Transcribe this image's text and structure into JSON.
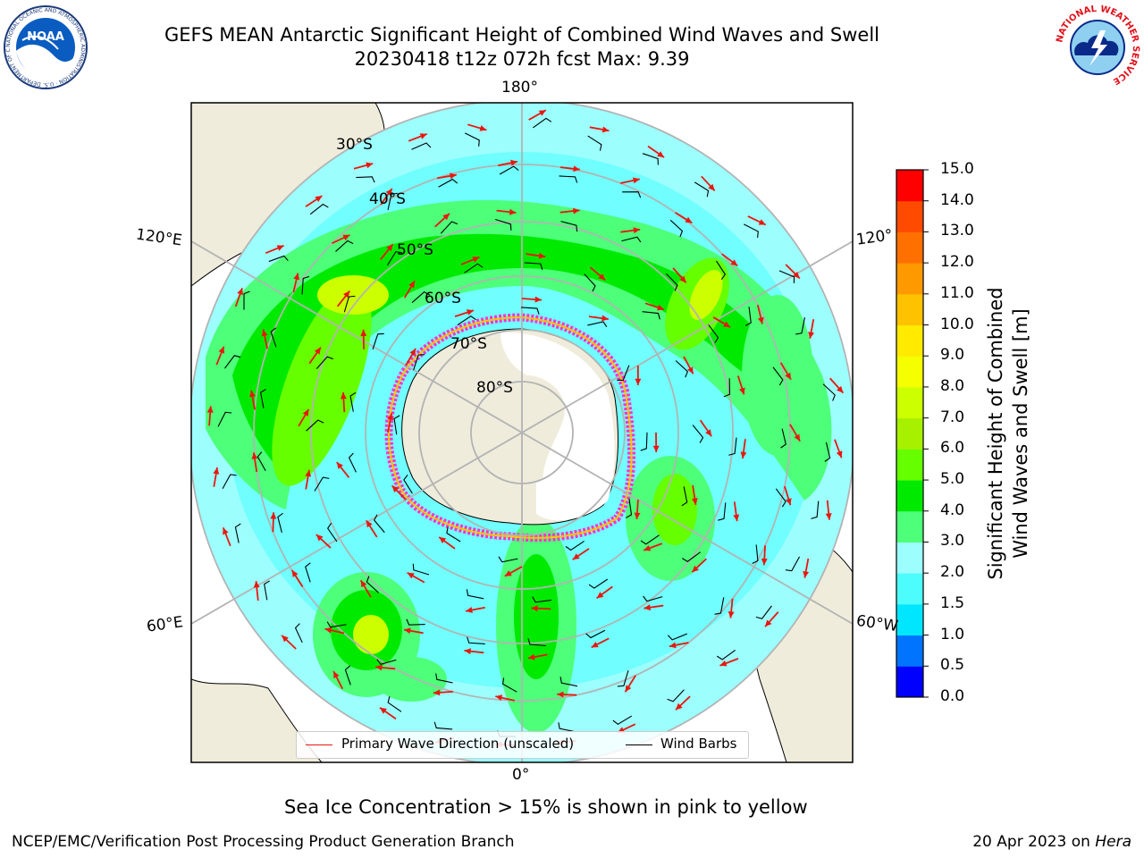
{
  "header": {
    "title_line1": "GEFS MEAN Antarctic Significant Height of Combined Wind Waves and Swell",
    "title_line2": "20230418 t12z 072h fcst   Max: 9.39"
  },
  "logos": {
    "noaa_text": "NOAA",
    "noaa_ring_text": "NATIONAL OCEANIC AND ATMOSPHERIC ADMINISTRATION · U.S. DEPARTMENT OF COMMERCE",
    "nws_ring_text": "NATIONAL WEATHER SERVICE"
  },
  "map": {
    "projection": "south-polar-stereographic",
    "longitude_labels": {
      "top": "180°",
      "bottom": "0°",
      "left_upper": "120°E",
      "left_lower": "60°E",
      "right_upper": "120°",
      "right_lower": "60°W"
    },
    "latitude_labels": [
      "30°S",
      "40°S",
      "50°S",
      "60°S",
      "70°S",
      "80°S"
    ],
    "colors": {
      "land": "#efecdc",
      "ice_sheet": "#ffffff",
      "gridline": "#b3b3b3",
      "wave_arrow": "#e8170f",
      "wind_barb": "#000000",
      "sea_ice": "#ff33cc"
    }
  },
  "legend": {
    "wave_direction": "Primary Wave Direction (unscaled)",
    "wind_barbs": "Wind Barbs"
  },
  "colorbar": {
    "label_line1": "Significant Height of Combined",
    "label_line2": "Wind Waves and Swell [m]",
    "ticks": [
      "15.0",
      "14.0",
      "13.0",
      "12.0",
      "11.0",
      "10.0",
      "9.0",
      "8.0",
      "7.0",
      "6.0",
      "5.0",
      "4.0",
      "3.0",
      "2.0",
      "1.5",
      "1.0",
      "0.5",
      "0.0"
    ],
    "colors": [
      "#0000ff",
      "#0073ff",
      "#00e6ff",
      "#4dfdfd",
      "#9cfffe",
      "#4dff79",
      "#00ea00",
      "#66ff00",
      "#a6f000",
      "#ccff00",
      "#f5ff00",
      "#ffea00",
      "#ffc200",
      "#ff9900",
      "#ff7000",
      "#ff4b00",
      "#ff0000"
    ]
  },
  "caption": "Sea Ice Concentration > 15% is shown in pink to yellow",
  "footer": {
    "left": "NCEP/EMC/Verification Post Processing Product Generation Branch",
    "right_date": "20 Apr 2023 on ",
    "right_host": "Hera"
  }
}
